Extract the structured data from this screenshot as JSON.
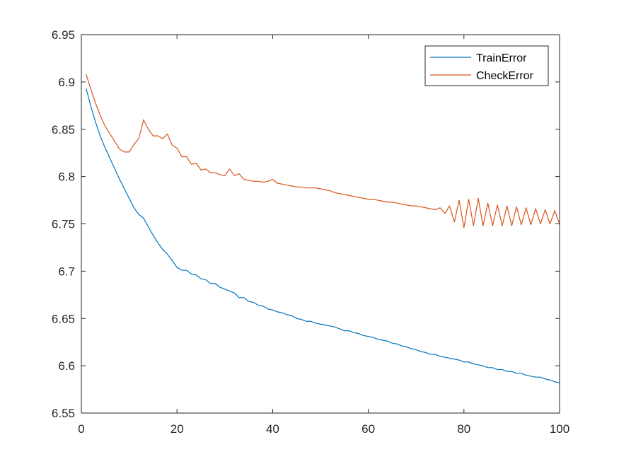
{
  "chart_data": {
    "type": "line",
    "title": "",
    "xlabel": "",
    "ylabel": "",
    "xlim": [
      0,
      100
    ],
    "ylim": [
      6.55,
      6.95
    ],
    "xticks": [
      0,
      20,
      40,
      60,
      80,
      100
    ],
    "xtick_labels": [
      "0",
      "20",
      "40",
      "60",
      "80",
      "100"
    ],
    "yticks": [
      6.55,
      6.6,
      6.65,
      6.7,
      6.75,
      6.8,
      6.85,
      6.9,
      6.95
    ],
    "ytick_labels": [
      "6.55",
      "6.6",
      "6.65",
      "6.7",
      "6.75",
      "6.8",
      "6.85",
      "6.9",
      "6.95"
    ],
    "grid": false,
    "legend_position": "top-right",
    "x": [
      1,
      2,
      3,
      4,
      5,
      6,
      7,
      8,
      9,
      10,
      11,
      12,
      13,
      14,
      15,
      16,
      17,
      18,
      19,
      20,
      21,
      22,
      23,
      24,
      25,
      26,
      27,
      28,
      29,
      30,
      31,
      32,
      33,
      34,
      35,
      36,
      37,
      38,
      39,
      40,
      41,
      42,
      43,
      44,
      45,
      46,
      47,
      48,
      49,
      50,
      51,
      52,
      53,
      54,
      55,
      56,
      57,
      58,
      59,
      60,
      61,
      62,
      63,
      64,
      65,
      66,
      67,
      68,
      69,
      70,
      71,
      72,
      73,
      74,
      75,
      76,
      77,
      78,
      79,
      80,
      81,
      82,
      83,
      84,
      85,
      86,
      87,
      88,
      89,
      90,
      91,
      92,
      93,
      94,
      95,
      96,
      97,
      98,
      99,
      100
    ],
    "series": [
      {
        "name": "TrainError",
        "color": "#0072BD",
        "values": [
          6.893,
          6.874,
          6.857,
          6.842,
          6.83,
          6.819,
          6.808,
          6.797,
          6.787,
          6.777,
          6.767,
          6.76,
          6.756,
          6.747,
          6.738,
          6.73,
          6.723,
          6.718,
          6.711,
          6.704,
          6.701,
          6.701,
          6.697,
          6.696,
          6.692,
          6.691,
          6.687,
          6.687,
          6.683,
          6.681,
          6.679,
          6.677,
          6.672,
          6.672,
          6.668,
          6.667,
          6.664,
          6.663,
          6.66,
          6.659,
          6.657,
          6.656,
          6.654,
          6.653,
          6.65,
          6.649,
          6.647,
          6.647,
          6.645,
          6.644,
          6.643,
          6.642,
          6.641,
          6.639,
          6.637,
          6.637,
          6.635,
          6.634,
          6.632,
          6.631,
          6.63,
          6.628,
          6.627,
          6.626,
          6.624,
          6.623,
          6.621,
          6.62,
          6.618,
          6.617,
          6.615,
          6.614,
          6.612,
          6.612,
          6.61,
          6.609,
          6.608,
          6.607,
          6.606,
          6.604,
          6.604,
          6.602,
          6.601,
          6.6,
          6.598,
          6.598,
          6.596,
          6.596,
          6.594,
          6.594,
          6.592,
          6.592,
          6.59,
          6.589,
          6.588,
          6.588,
          6.586,
          6.585,
          6.583,
          6.582
        ]
      },
      {
        "name": "CheckError",
        "color": "#D95319",
        "values": [
          6.908,
          6.892,
          6.877,
          6.864,
          6.853,
          6.845,
          6.837,
          6.829,
          6.826,
          6.826,
          6.834,
          6.84,
          6.86,
          6.85,
          6.843,
          6.843,
          6.84,
          6.845,
          6.833,
          6.83,
          6.821,
          6.821,
          6.813,
          6.814,
          6.807,
          6.808,
          6.804,
          6.804,
          6.802,
          6.801,
          6.808,
          6.801,
          6.803,
          6.797,
          6.796,
          6.795,
          6.795,
          6.794,
          6.795,
          6.797,
          6.793,
          6.792,
          6.791,
          6.79,
          6.789,
          6.789,
          6.788,
          6.788,
          6.788,
          6.787,
          6.786,
          6.785,
          6.783,
          6.782,
          6.781,
          6.78,
          6.779,
          6.778,
          6.777,
          6.776,
          6.776,
          6.775,
          6.774,
          6.773,
          6.773,
          6.772,
          6.771,
          6.77,
          6.769,
          6.769,
          6.768,
          6.767,
          6.766,
          6.765,
          6.767,
          6.761,
          6.769,
          6.752,
          6.775,
          6.746,
          6.776,
          6.748,
          6.777,
          6.748,
          6.772,
          6.748,
          6.77,
          6.748,
          6.769,
          6.748,
          6.768,
          6.749,
          6.767,
          6.749,
          6.766,
          6.75,
          6.765,
          6.75,
          6.764,
          6.75
        ]
      }
    ]
  }
}
